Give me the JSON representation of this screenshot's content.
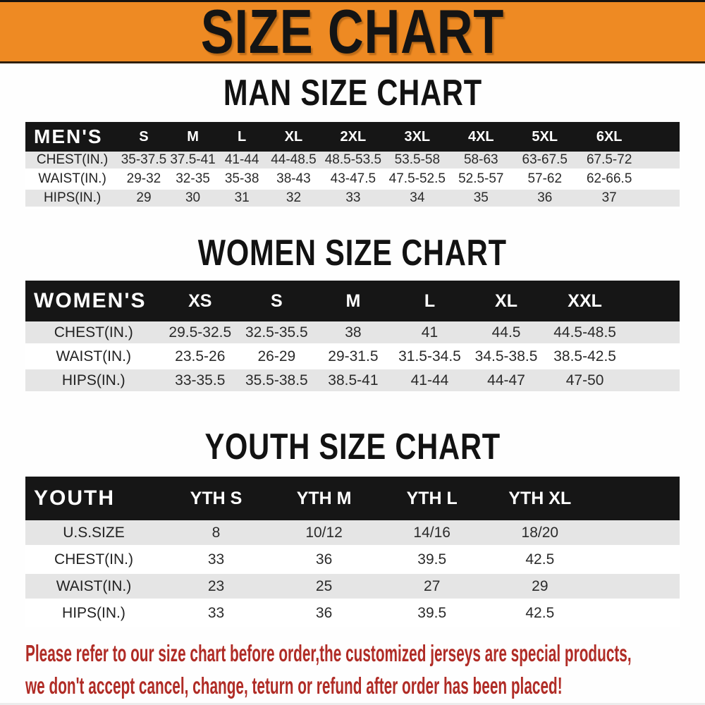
{
  "banner": {
    "title": "SIZE CHART"
  },
  "sections": [
    {
      "heading": "MAN SIZE CHART",
      "table": {
        "header_label": "MEN'S",
        "columns": [
          "S",
          "M",
          "L",
          "XL",
          "2XL",
          "3XL",
          "4XL",
          "5XL",
          "6XL"
        ],
        "rows": [
          {
            "label": "CHEST(IN.)",
            "values": [
              "35-37.5",
              "37.5-41",
              "41-44",
              "44-48.5",
              "48.5-53.5",
              "53.5-58",
              "58-63",
              "63-67.5",
              "67.5-72"
            ]
          },
          {
            "label": "WAIST(IN.)",
            "values": [
              "29-32",
              "32-35",
              "35-38",
              "38-43",
              "43-47.5",
              "47.5-52.5",
              "52.5-57",
              "57-62",
              "62-66.5"
            ]
          },
          {
            "label": "HIPS(IN.)",
            "values": [
              "29",
              "30",
              "31",
              "32",
              "33",
              "34",
              "35",
              "36",
              "37"
            ]
          }
        ]
      }
    },
    {
      "heading": "WOMEN SIZE CHART",
      "table": {
        "header_label": "WOMEN'S",
        "columns": [
          "XS",
          "S",
          "M",
          "L",
          "XL",
          "XXL"
        ],
        "rows": [
          {
            "label": "CHEST(IN.)",
            "values": [
              "29.5-32.5",
              "32.5-35.5",
              "38",
              "41",
              "44.5",
              "44.5-48.5"
            ]
          },
          {
            "label": "WAIST(IN.)",
            "values": [
              "23.5-26",
              "26-29",
              "29-31.5",
              "31.5-34.5",
              "34.5-38.5",
              "38.5-42.5"
            ]
          },
          {
            "label": "HIPS(IN.)",
            "values": [
              "33-35.5",
              "35.5-38.5",
              "38.5-41",
              "41-44",
              "44-47",
              "47-50"
            ]
          }
        ]
      }
    },
    {
      "heading": "YOUTH SIZE CHART",
      "table": {
        "header_label": "YOUTH",
        "columns": [
          "YTH S",
          "YTH M",
          "YTH L",
          "YTH XL"
        ],
        "rows": [
          {
            "label": "U.S.SIZE",
            "values": [
              "8",
              "10/12",
              "14/16",
              "18/20"
            ]
          },
          {
            "label": "CHEST(IN.)",
            "values": [
              "33",
              "36",
              "39.5",
              "42.5"
            ]
          },
          {
            "label": "WAIST(IN.)",
            "values": [
              "23",
              "25",
              "27",
              "29"
            ]
          },
          {
            "label": "HIPS(IN.)",
            "values": [
              "33",
              "36",
              "39.5",
              "42.5"
            ]
          }
        ]
      }
    }
  ],
  "footer": {
    "line1": "Please refer to our size chart before order,the customized jerseys are special products,",
    "line2": "we don't accept cancel, change, teturn or refund after order has been placed!"
  },
  "colors": {
    "banner_bg": "#ee8a23",
    "table_header_bg": "#161616",
    "row_stripe_gray": "#e5e5e5",
    "footer_text": "#b02c26"
  }
}
